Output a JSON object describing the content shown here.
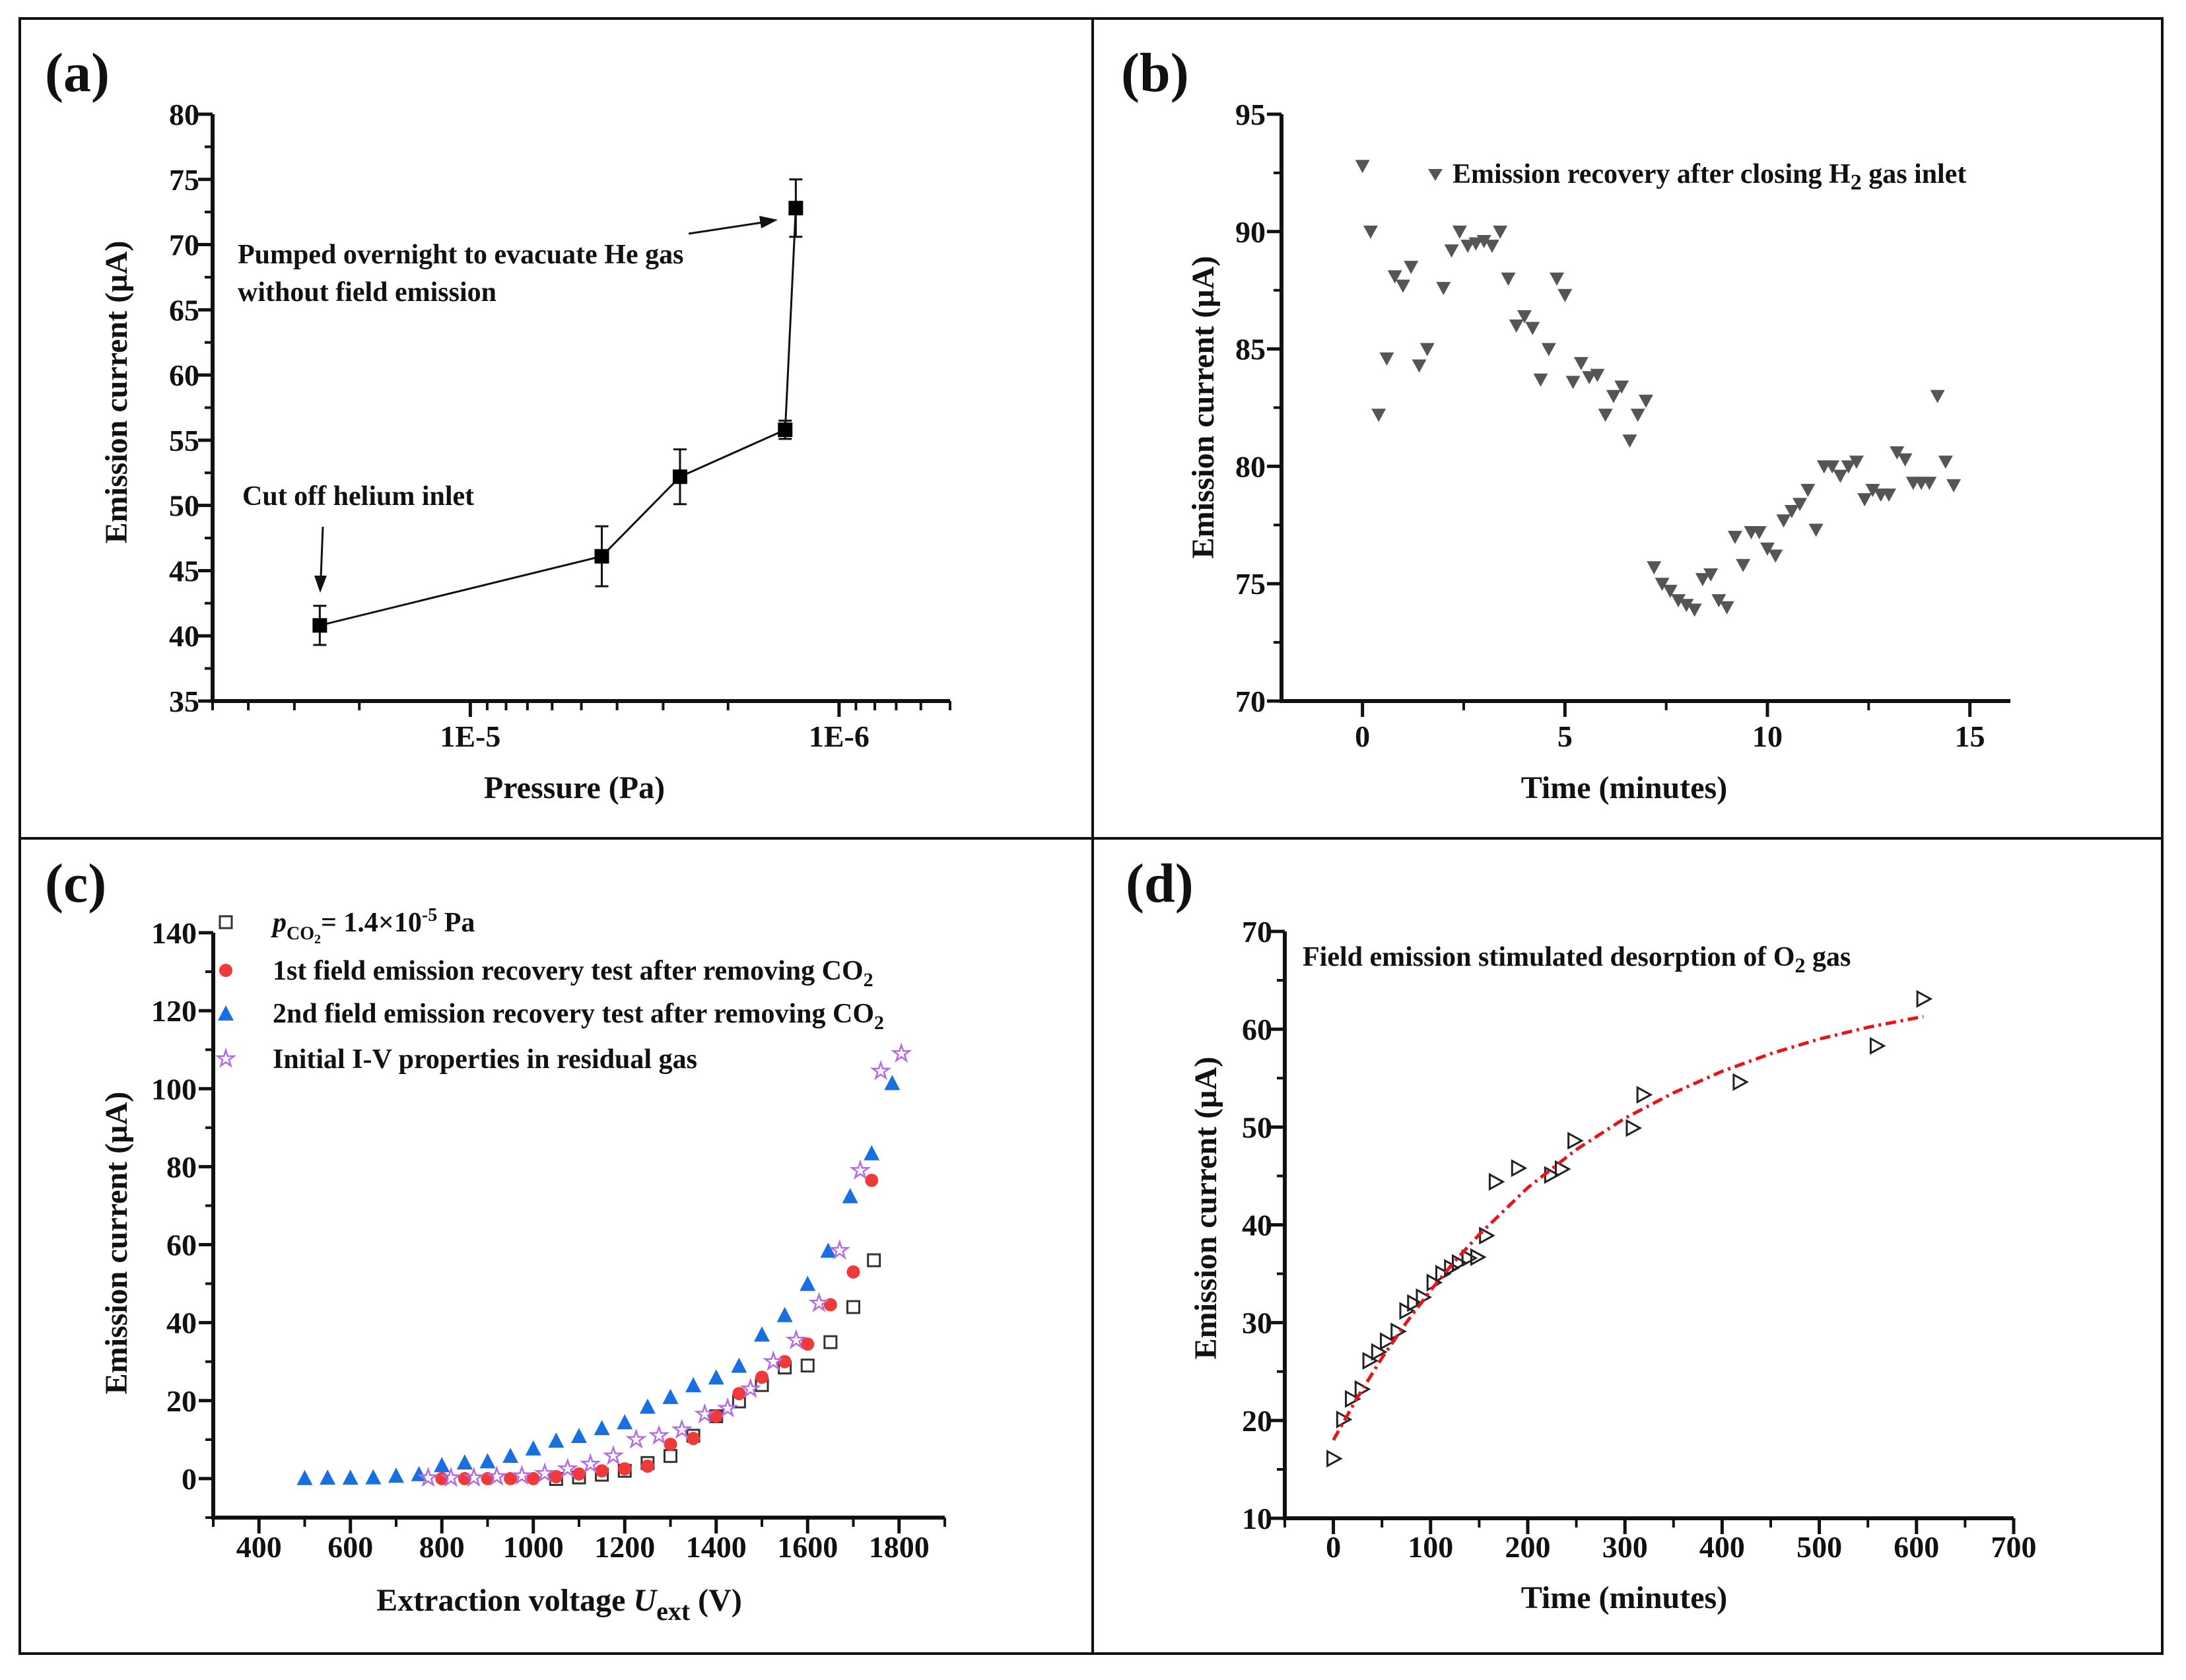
{
  "chart_data": [
    {
      "panel_label": "(a)",
      "type": "line",
      "xlabel": "Pressure (Pa)",
      "ylabel": "Emission current (µA)",
      "xscale": "log",
      "xlim": [
        5e-05,
        5e-07
      ],
      "ylim": [
        35,
        80
      ],
      "xticks": [
        {
          "value": 1e-05,
          "label": "1E-5"
        },
        {
          "value": 1e-06,
          "label": "1E-6"
        }
      ],
      "yticks": [
        35,
        40,
        45,
        50,
        55,
        60,
        65,
        70,
        75,
        80
      ],
      "series": [
        {
          "name": "emission",
          "color": "#000000",
          "marker": "square",
          "x": [
            2.56e-05,
            4.4e-06,
            2.7e-06,
            1.4e-06,
            1.31e-06
          ],
          "y": [
            40.8,
            46.1,
            52.2,
            55.8,
            72.8
          ],
          "yerr": [
            1.5,
            2.3,
            2.1,
            0.7,
            2.2
          ]
        }
      ],
      "annotations": {
        "pumped_line1": "Pumped overnight to evacuate He gas",
        "pumped_line2": "without field emission",
        "cutoff": "Cut off helium inlet"
      }
    },
    {
      "panel_label": "(b)",
      "type": "scatter",
      "xlabel": "Time (minutes)",
      "ylabel": "Emission current (µA)",
      "xlim": [
        -2,
        16
      ],
      "ylim": [
        70,
        95
      ],
      "xticks": [
        0,
        5,
        10,
        15
      ],
      "yticks": [
        70,
        75,
        80,
        85,
        90,
        95
      ],
      "legend": {
        "text": "Emission recovery after closing H",
        "sub": "2",
        "text_after": " gas inlet",
        "placement": "top"
      },
      "series": [
        {
          "name": "Emission recovery after closing H2 gas inlet",
          "color": "#555555",
          "marker": "triangle-down",
          "x": [
            0,
            0.2,
            0.4,
            0.6,
            0.8,
            1.0,
            1.2,
            1.4,
            1.6,
            2.0,
            2.2,
            2.4,
            2.6,
            2.8,
            3.0,
            3.2,
            3.4,
            3.6,
            3.8,
            4.0,
            4.2,
            4.4,
            4.6,
            4.8,
            5.0,
            5.2,
            5.4,
            5.6,
            5.8,
            6.0,
            6.2,
            6.4,
            6.6,
            6.8,
            7.0,
            7.2,
            7.4,
            7.6,
            7.8,
            8.0,
            8.2,
            8.4,
            8.6,
            8.8,
            9.0,
            9.2,
            9.4,
            9.6,
            9.8,
            10.0,
            10.2,
            10.4,
            10.6,
            10.8,
            11.0,
            11.2,
            11.4,
            11.6,
            11.8,
            12.0,
            12.2,
            12.4,
            12.6,
            12.8,
            13.0,
            13.2,
            13.4,
            13.6,
            13.8,
            14.0,
            14.2,
            14.4,
            14.6
          ],
          "y": [
            92.8,
            90.0,
            82.2,
            84.6,
            88.1,
            87.7,
            88.5,
            84.3,
            85.0,
            87.6,
            89.2,
            90.0,
            89.4,
            89.5,
            89.6,
            89.4,
            90.0,
            88.0,
            86.0,
            86.4,
            85.9,
            83.7,
            85.0,
            88.0,
            87.3,
            83.6,
            84.4,
            83.8,
            83.9,
            82.2,
            83.0,
            83.4,
            81.1,
            82.2,
            82.8,
            75.7,
            75.0,
            74.7,
            74.3,
            74.1,
            73.9,
            75.2,
            75.4,
            74.3,
            74.0,
            77.0,
            75.8,
            77.2,
            77.2,
            76.5,
            76.2,
            77.7,
            78.1,
            78.4,
            79.0,
            77.3,
            80.0,
            80.0,
            79.6,
            80.0,
            80.2,
            78.6,
            79.0,
            78.8,
            78.8,
            80.6,
            80.3,
            79.3,
            79.3,
            79.3,
            83.0,
            80.2,
            79.2
          ]
        }
      ]
    },
    {
      "panel_label": "(c)",
      "type": "scatter",
      "xlabel": {
        "text": "Extraction voltage ",
        "italic": "U",
        "sub": "ext",
        "text_after": " (V)"
      },
      "ylabel": "Emission current (µA)",
      "xlim": [
        300,
        1900
      ],
      "ylim": [
        -10,
        140
      ],
      "xticks": [
        400,
        600,
        800,
        1000,
        1200,
        1400,
        1600,
        1800
      ],
      "yticks": [
        0,
        20,
        40,
        60,
        80,
        100,
        120,
        140
      ],
      "legend_placement": "top-left",
      "legend": [
        {
          "symbol": "p",
          "sub": "CO",
          "subsub": "2",
          "text": "= 1.4×10",
          "sup": "-5",
          "unit": " Pa"
        },
        {
          "text": "1st field emission recovery test after removing CO",
          "sub": "2"
        },
        {
          "text": "2nd field emission recovery test after removing CO",
          "sub": "2"
        },
        {
          "text": "Initial I-V properties in residual gas"
        }
      ],
      "series": [
        {
          "name": "pCO2 = 1.4×10^-5 Pa",
          "color": "#333333",
          "marker": "open-square",
          "x": [
            1050,
            1100,
            1150,
            1200,
            1250,
            1300,
            1350,
            1400,
            1450,
            1500,
            1550,
            1600,
            1650,
            1700,
            1745
          ],
          "y": [
            -0.1,
            0.3,
            1,
            2,
            4,
            5.8,
            11,
            16,
            19.8,
            24,
            28.5,
            29,
            35,
            44,
            56
          ]
        },
        {
          "name": "1st field emission recovery test after removing CO2",
          "color": "#f03a3a",
          "marker": "circle",
          "x": [
            800,
            850,
            900,
            950,
            1000,
            1050,
            1100,
            1150,
            1200,
            1250,
            1300,
            1350,
            1400,
            1450,
            1500,
            1550,
            1600,
            1650,
            1700,
            1740
          ],
          "y": [
            0,
            0,
            0,
            0,
            0,
            0.5,
            1.2,
            2,
            2.5,
            3.2,
            8.8,
            10.3,
            16,
            21.8,
            26,
            30,
            34.5,
            44.6,
            53,
            76.5
          ]
        },
        {
          "name": "2nd field emission recovery test after removing CO2",
          "color": "#1a6fe0",
          "marker": "triangle-up",
          "x": [
            500,
            550,
            600,
            650,
            700,
            750,
            800,
            850,
            900,
            950,
            1000,
            1050,
            1100,
            1150,
            1200,
            1250,
            1300,
            1350,
            1400,
            1450,
            1500,
            1550,
            1600,
            1645,
            1693,
            1740,
            1785
          ],
          "y": [
            0.2,
            0.3,
            0.3,
            0.4,
            0.8,
            1.2,
            3.5,
            4.2,
            4.5,
            5.9,
            7.8,
            9.8,
            11,
            13,
            14.5,
            18.5,
            21,
            24,
            26,
            29,
            37,
            42,
            50,
            58.5,
            72.5,
            83.5,
            101.5
          ]
        },
        {
          "name": "Initial I-V properties in residual gas",
          "color": "#b36be6",
          "marker": "open-star",
          "x": [
            770,
            820,
            870,
            920,
            975,
            1025,
            1075,
            1125,
            1175,
            1225,
            1275,
            1325,
            1375,
            1425,
            1475,
            1525,
            1575,
            1625,
            1670,
            1715,
            1760,
            1805
          ],
          "y": [
            0.2,
            0.2,
            0.2,
            0.5,
            0.7,
            1.3,
            2.5,
            3.7,
            5.8,
            10,
            11,
            12.5,
            16.5,
            18,
            23,
            30,
            35.5,
            45,
            58.5,
            79,
            104.5,
            109
          ]
        }
      ]
    },
    {
      "panel_label": "(d)",
      "type": "scatter",
      "xlabel": "Time (minutes)",
      "ylabel": "Emission current (µA)",
      "xlim": [
        -50,
        700
      ],
      "ylim": [
        10,
        70
      ],
      "xticks": [
        0,
        100,
        200,
        300,
        400,
        500,
        600,
        700
      ],
      "yticks": [
        10,
        20,
        30,
        40,
        50,
        60,
        70
      ],
      "annotation": {
        "text": "Field emission stimulated desorption of O",
        "sub": "2",
        "text_after": " gas"
      },
      "series": [
        {
          "name": "data",
          "color": "#222222",
          "marker": "open-triangle-right",
          "x": [
            0,
            10,
            19,
            29,
            37,
            46,
            55,
            66,
            75,
            83,
            92,
            103,
            112,
            121,
            129,
            139,
            148,
            157,
            167,
            190,
            224,
            235,
            248,
            308,
            319,
            418,
            559,
            607
          ],
          "y": [
            16.1,
            20.1,
            22.2,
            23.2,
            26.1,
            27.0,
            28.1,
            29.1,
            31.2,
            32.0,
            32.6,
            34.1,
            35.0,
            35.6,
            36.1,
            36.6,
            36.7,
            38.9,
            44.4,
            45.8,
            45.1,
            45.7,
            48.6,
            49.9,
            53.3,
            54.6,
            58.3,
            63.1
          ]
        },
        {
          "name": "fit",
          "color": "#e8141b",
          "line": "dash-dot",
          "x": [
            0,
            25,
            50,
            75,
            100,
            125,
            150,
            200,
            250,
            300,
            350,
            400,
            450,
            500,
            550,
            607
          ],
          "y": [
            18.0,
            22.4,
            26.4,
            30.0,
            33.3,
            36.3,
            39.0,
            43.8,
            47.7,
            50.9,
            53.5,
            55.7,
            57.5,
            59.0,
            60.2,
            61.3
          ]
        }
      ]
    }
  ]
}
